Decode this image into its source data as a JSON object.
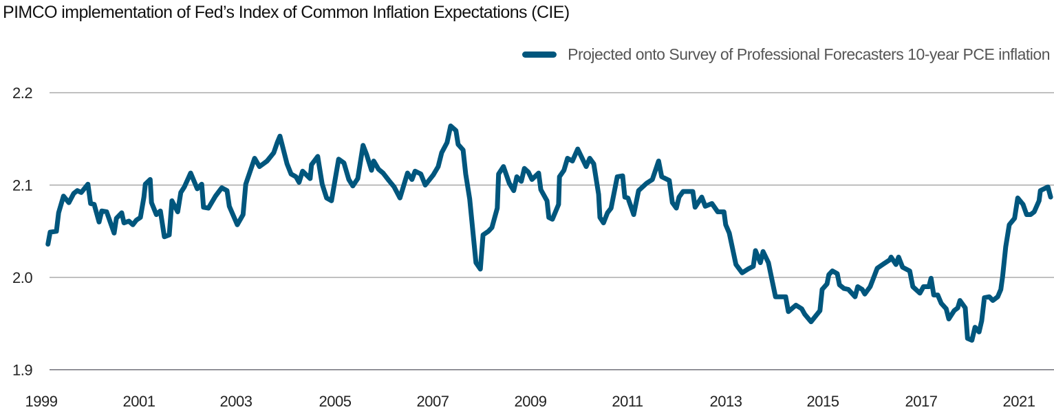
{
  "chart_data": {
    "type": "line",
    "title": "PIMCO implementation of Fed’s Index of Common Inflation Expectations (CIE)",
    "xlabel": "",
    "ylabel": "",
    "ylim": [
      1.9,
      2.2
    ],
    "y_ticks": [
      "2.2",
      "2.1",
      "2.0",
      "1.9"
    ],
    "x_tick_labels": [
      "1999",
      "2001",
      "2003",
      "2005",
      "2007",
      "2009",
      "2011",
      "2013",
      "2015",
      "2017",
      "2021"
    ],
    "grid": "horizontal",
    "legend_position": "top-right",
    "colors": {
      "series": "#00567d",
      "grid": "#9a9a9a",
      "baseline": "#555560"
    },
    "series": [
      {
        "name": "Projected onto Survey of Professional Forecasters 10-year PCE inflation",
        "points": [
          [
            1999.15,
            2.036
          ],
          [
            1999.2,
            2.049
          ],
          [
            1999.34,
            2.05
          ],
          [
            1999.39,
            2.07
          ],
          [
            1999.5,
            2.088
          ],
          [
            1999.62,
            2.081
          ],
          [
            1999.73,
            2.091
          ],
          [
            1999.81,
            2.094
          ],
          [
            1999.9,
            2.092
          ],
          [
            2000.05,
            2.101
          ],
          [
            2000.11,
            2.08
          ],
          [
            2000.19,
            2.079
          ],
          [
            2000.3,
            2.06
          ],
          [
            2000.36,
            2.072
          ],
          [
            2000.47,
            2.071
          ],
          [
            2000.64,
            2.048
          ],
          [
            2000.69,
            2.064
          ],
          [
            2000.81,
            2.07
          ],
          [
            2000.86,
            2.059
          ],
          [
            2000.97,
            2.061
          ],
          [
            2001.06,
            2.057
          ],
          [
            2001.14,
            2.062
          ],
          [
            2001.23,
            2.065
          ],
          [
            2001.31,
            2.087
          ],
          [
            2001.34,
            2.101
          ],
          [
            2001.45,
            2.106
          ],
          [
            2001.48,
            2.081
          ],
          [
            2001.59,
            2.068
          ],
          [
            2001.68,
            2.072
          ],
          [
            2001.77,
            2.044
          ],
          [
            2001.88,
            2.046
          ],
          [
            2001.94,
            2.083
          ],
          [
            2002.07,
            2.071
          ],
          [
            2002.14,
            2.092
          ],
          [
            2002.22,
            2.098
          ],
          [
            2002.36,
            2.113
          ],
          [
            2002.51,
            2.096
          ],
          [
            2002.61,
            2.101
          ],
          [
            2002.65,
            2.076
          ],
          [
            2002.76,
            2.075
          ],
          [
            2002.92,
            2.088
          ],
          [
            2003.06,
            2.097
          ],
          [
            2003.18,
            2.094
          ],
          [
            2003.23,
            2.077
          ],
          [
            2003.41,
            2.057
          ],
          [
            2003.54,
            2.068
          ],
          [
            2003.6,
            2.101
          ],
          [
            2003.8,
            2.129
          ],
          [
            2003.91,
            2.12
          ],
          [
            2004.08,
            2.126
          ],
          [
            2004.23,
            2.135
          ],
          [
            2004.31,
            2.146
          ],
          [
            2004.37,
            2.153
          ],
          [
            2004.53,
            2.123
          ],
          [
            2004.62,
            2.112
          ],
          [
            2004.73,
            2.109
          ],
          [
            2004.8,
            2.103
          ],
          [
            2004.88,
            2.115
          ],
          [
            2005.05,
            2.107
          ],
          [
            2005.08,
            2.122
          ],
          [
            2005.22,
            2.131
          ],
          [
            2005.32,
            2.101
          ],
          [
            2005.42,
            2.086
          ],
          [
            2005.53,
            2.083
          ],
          [
            2005.69,
            2.128
          ],
          [
            2005.81,
            2.124
          ],
          [
            2005.92,
            2.106
          ],
          [
            2006.01,
            2.099
          ],
          [
            2006.12,
            2.107
          ],
          [
            2006.24,
            2.143
          ],
          [
            2006.32,
            2.133
          ],
          [
            2006.43,
            2.116
          ],
          [
            2006.48,
            2.126
          ],
          [
            2006.59,
            2.117
          ],
          [
            2006.69,
            2.113
          ],
          [
            2006.82,
            2.105
          ],
          [
            2006.94,
            2.098
          ],
          [
            2007.07,
            2.086
          ],
          [
            2007.24,
            2.113
          ],
          [
            2007.34,
            2.106
          ],
          [
            2007.41,
            2.115
          ],
          [
            2007.54,
            2.112
          ],
          [
            2007.64,
            2.1
          ],
          [
            2007.82,
            2.111
          ],
          [
            2007.93,
            2.12
          ],
          [
            2008.01,
            2.135
          ],
          [
            2008.13,
            2.146
          ],
          [
            2008.21,
            2.164
          ],
          [
            2008.33,
            2.159
          ],
          [
            2008.38,
            2.144
          ],
          [
            2008.49,
            2.138
          ],
          [
            2008.55,
            2.112
          ],
          [
            2008.64,
            2.085
          ],
          [
            2008.78,
            2.016
          ],
          [
            2008.88,
            2.009
          ],
          [
            2008.94,
            2.046
          ],
          [
            2009.06,
            2.05
          ],
          [
            2009.14,
            2.054
          ],
          [
            2009.26,
            2.075
          ],
          [
            2009.29,
            2.112
          ],
          [
            2009.4,
            2.12
          ],
          [
            2009.53,
            2.102
          ],
          [
            2009.63,
            2.094
          ],
          [
            2009.7,
            2.109
          ],
          [
            2009.8,
            2.104
          ],
          [
            2009.87,
            2.118
          ],
          [
            2009.96,
            2.114
          ],
          [
            2010.04,
            2.106
          ],
          [
            2010.19,
            2.113
          ],
          [
            2010.24,
            2.095
          ],
          [
            2010.38,
            2.083
          ],
          [
            2010.42,
            2.065
          ],
          [
            2010.5,
            2.063
          ],
          [
            2010.64,
            2.079
          ],
          [
            2010.66,
            2.109
          ],
          [
            2010.76,
            2.116
          ],
          [
            2010.84,
            2.129
          ],
          [
            2010.95,
            2.126
          ],
          [
            2011.07,
            2.139
          ],
          [
            2011.26,
            2.12
          ],
          [
            2011.34,
            2.129
          ],
          [
            2011.43,
            2.123
          ],
          [
            2011.54,
            2.09
          ],
          [
            2011.57,
            2.065
          ],
          [
            2011.65,
            2.059
          ],
          [
            2011.74,
            2.07
          ],
          [
            2011.82,
            2.075
          ],
          [
            2011.96,
            2.109
          ],
          [
            2012.08,
            2.11
          ],
          [
            2012.13,
            2.087
          ],
          [
            2012.2,
            2.086
          ],
          [
            2012.33,
            2.068
          ],
          [
            2012.44,
            2.094
          ],
          [
            2012.62,
            2.102
          ],
          [
            2012.75,
            2.106
          ],
          [
            2012.89,
            2.126
          ],
          [
            2012.96,
            2.109
          ],
          [
            2013.13,
            2.105
          ],
          [
            2013.2,
            2.081
          ],
          [
            2013.29,
            2.075
          ],
          [
            2013.35,
            2.087
          ],
          [
            2013.44,
            2.093
          ],
          [
            2013.66,
            2.093
          ],
          [
            2013.71,
            2.076
          ],
          [
            2013.86,
            2.087
          ],
          [
            2013.94,
            2.077
          ],
          [
            2014.09,
            2.08
          ],
          [
            2014.22,
            2.071
          ],
          [
            2014.36,
            2.071
          ],
          [
            2014.4,
            2.057
          ],
          [
            2014.48,
            2.048
          ],
          [
            2014.63,
            2.014
          ],
          [
            2014.77,
            2.005
          ],
          [
            2014.9,
            2.009
          ],
          [
            2015.02,
            2.012
          ],
          [
            2015.07,
            2.029
          ],
          [
            2015.18,
            2.016
          ],
          [
            2015.24,
            2.028
          ],
          [
            2015.36,
            2.016
          ],
          [
            2015.46,
            1.993
          ],
          [
            2015.52,
            1.979
          ],
          [
            2015.75,
            1.979
          ],
          [
            2015.81,
            1.963
          ],
          [
            2015.98,
            1.97
          ],
          [
            2016.11,
            1.966
          ],
          [
            2016.18,
            1.96
          ],
          [
            2016.32,
            1.952
          ],
          [
            2016.52,
            1.964
          ],
          [
            2016.57,
            1.987
          ],
          [
            2016.68,
            1.993
          ],
          [
            2016.72,
            2.003
          ],
          [
            2016.8,
            2.007
          ],
          [
            2016.91,
            2.004
          ],
          [
            2016.96,
            1.992
          ],
          [
            2017.06,
            1.988
          ],
          [
            2017.16,
            1.987
          ],
          [
            2017.31,
            1.979
          ],
          [
            2017.37,
            1.99
          ],
          [
            2017.47,
            1.987
          ],
          [
            2017.53,
            1.982
          ],
          [
            2017.65,
            1.99
          ],
          [
            2017.81,
            2.01
          ],
          [
            2017.93,
            2.014
          ],
          [
            2018.09,
            2.019
          ],
          [
            2018.12,
            2.022
          ],
          [
            2018.23,
            2.014
          ],
          [
            2018.29,
            2.022
          ],
          [
            2018.38,
            2.011
          ],
          [
            2018.54,
            2.007
          ],
          [
            2018.61,
            1.99
          ],
          [
            2018.77,
            1.983
          ],
          [
            2018.85,
            1.99
          ],
          [
            2018.97,
            1.99
          ],
          [
            2019.02,
            1.999
          ],
          [
            2019.08,
            1.981
          ],
          [
            2019.17,
            1.981
          ],
          [
            2019.25,
            1.972
          ],
          [
            2019.36,
            1.966
          ],
          [
            2019.42,
            1.955
          ],
          [
            2019.54,
            1.964
          ],
          [
            2019.62,
            1.967
          ],
          [
            2019.67,
            1.975
          ],
          [
            2019.79,
            1.967
          ],
          [
            2019.84,
            1.934
          ],
          [
            2019.94,
            1.932
          ],
          [
            2020.01,
            1.946
          ],
          [
            2020.1,
            1.941
          ],
          [
            2020.16,
            1.953
          ],
          [
            2020.22,
            1.978
          ],
          [
            2020.33,
            1.979
          ],
          [
            2020.41,
            1.975
          ],
          [
            2020.52,
            1.979
          ],
          [
            2020.59,
            1.987
          ],
          [
            2020.63,
            2.001
          ],
          [
            2020.7,
            2.033
          ],
          [
            2020.78,
            2.057
          ],
          [
            2020.9,
            2.064
          ],
          [
            2020.97,
            2.086
          ],
          [
            2021.09,
            2.079
          ],
          [
            2021.17,
            2.068
          ],
          [
            2021.26,
            2.068
          ],
          [
            2021.34,
            2.071
          ],
          [
            2021.45,
            2.083
          ],
          [
            2021.48,
            2.094
          ],
          [
            2021.65,
            2.098
          ],
          [
            2021.71,
            2.087
          ]
        ]
      }
    ]
  }
}
